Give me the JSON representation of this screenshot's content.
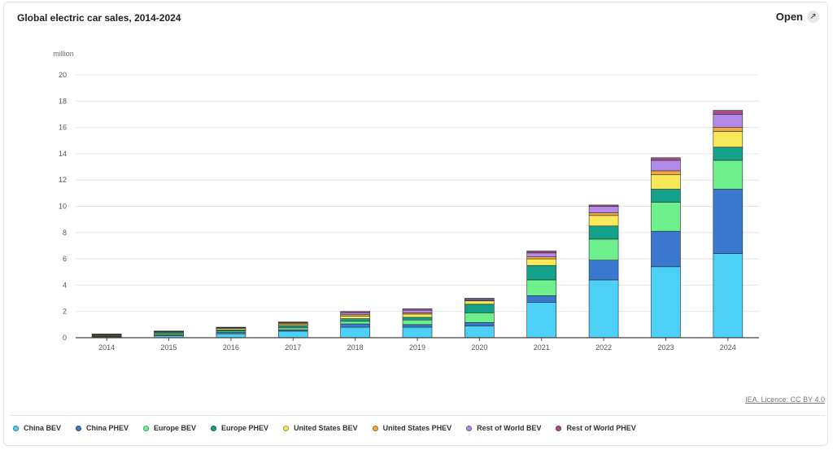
{
  "header": {
    "title": "Global electric car sales, 2014-2024",
    "open_label": "Open",
    "open_icon": "expand-arrow-icon"
  },
  "footer": {
    "licence": "IEA. Licence: CC BY 4.0"
  },
  "chart_data": {
    "type": "bar",
    "stacked": true,
    "title": "Global electric car sales, 2014-2024",
    "xlabel": "",
    "ylabel": "million",
    "ylim": [
      0,
      20
    ],
    "yticks": [
      0,
      2,
      4,
      6,
      8,
      10,
      12,
      14,
      16,
      18,
      20
    ],
    "grid": true,
    "legend_placement": "bottom",
    "categories": [
      "2014",
      "2015",
      "2016",
      "2017",
      "2018",
      "2019",
      "2020",
      "2021",
      "2022",
      "2023",
      "2024"
    ],
    "series": [
      {
        "name": "China BEV",
        "color": "#4dd0f5",
        "values": [
          0.05,
          0.15,
          0.3,
          0.5,
          0.8,
          0.8,
          0.9,
          2.7,
          4.4,
          5.4,
          6.4
        ]
      },
      {
        "name": "China PHEV",
        "color": "#3a78d0",
        "values": [
          0.02,
          0.05,
          0.1,
          0.1,
          0.25,
          0.2,
          0.25,
          0.5,
          1.5,
          2.7,
          4.9
        ]
      },
      {
        "name": "Europe BEV",
        "color": "#6ef08c",
        "values": [
          0.05,
          0.1,
          0.1,
          0.15,
          0.2,
          0.35,
          0.75,
          1.2,
          1.6,
          2.2,
          2.2
        ]
      },
      {
        "name": "Europe PHEV",
        "color": "#13a189",
        "values": [
          0.03,
          0.1,
          0.1,
          0.15,
          0.2,
          0.2,
          0.65,
          1.1,
          1.0,
          1.0,
          1.0
        ]
      },
      {
        "name": "United States BEV",
        "color": "#fae85b",
        "values": [
          0.05,
          0.05,
          0.1,
          0.1,
          0.2,
          0.25,
          0.25,
          0.5,
          0.8,
          1.1,
          1.2
        ]
      },
      {
        "name": "United States PHEV",
        "color": "#f2a93f",
        "values": [
          0.05,
          0.03,
          0.05,
          0.1,
          0.1,
          0.1,
          0.05,
          0.15,
          0.2,
          0.3,
          0.3
        ]
      },
      {
        "name": "Rest of World BEV",
        "color": "#b38ae8",
        "values": [
          0.02,
          0.02,
          0.03,
          0.05,
          0.15,
          0.2,
          0.1,
          0.3,
          0.5,
          0.8,
          1.0
        ]
      },
      {
        "name": "Rest of World PHEV",
        "color": "#a4508a",
        "values": [
          0.01,
          0.01,
          0.02,
          0.05,
          0.1,
          0.1,
          0.05,
          0.15,
          0.1,
          0.2,
          0.3
        ]
      }
    ]
  }
}
